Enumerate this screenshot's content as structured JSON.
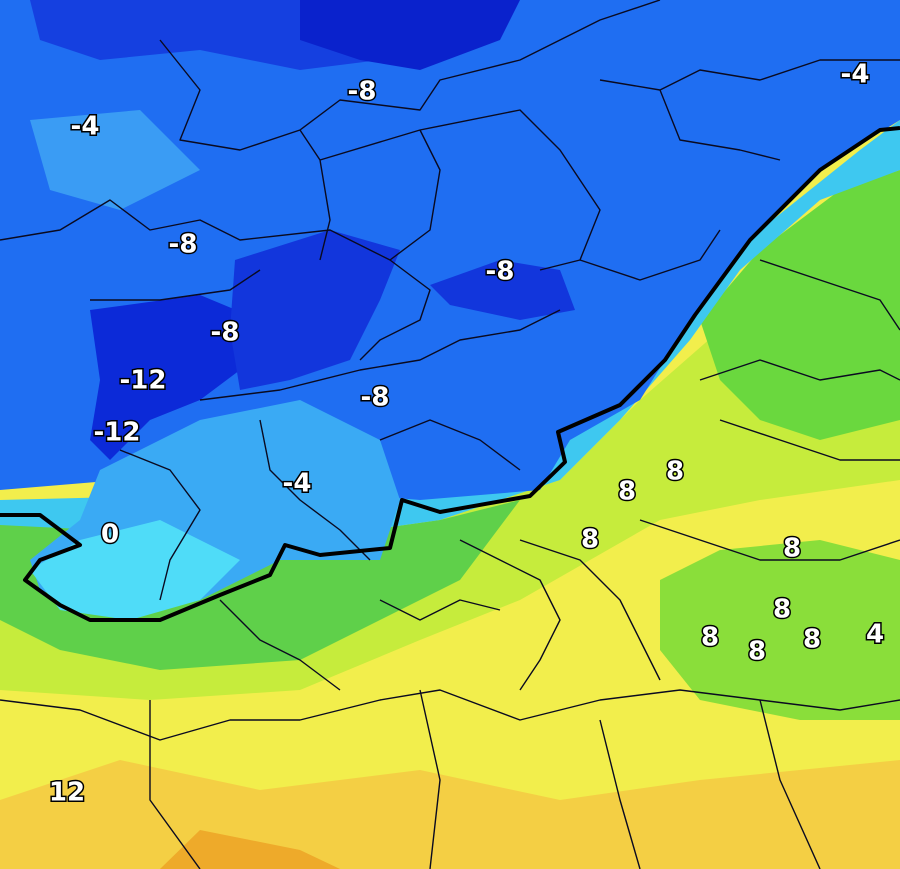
{
  "labels": [
    -8,
    -4,
    -4,
    -8,
    -8,
    -8,
    -12,
    -12,
    -8,
    -4,
    0,
    8,
    8,
    8,
    8,
    8,
    8,
    8,
    8,
    4,
    12
  ]
}
